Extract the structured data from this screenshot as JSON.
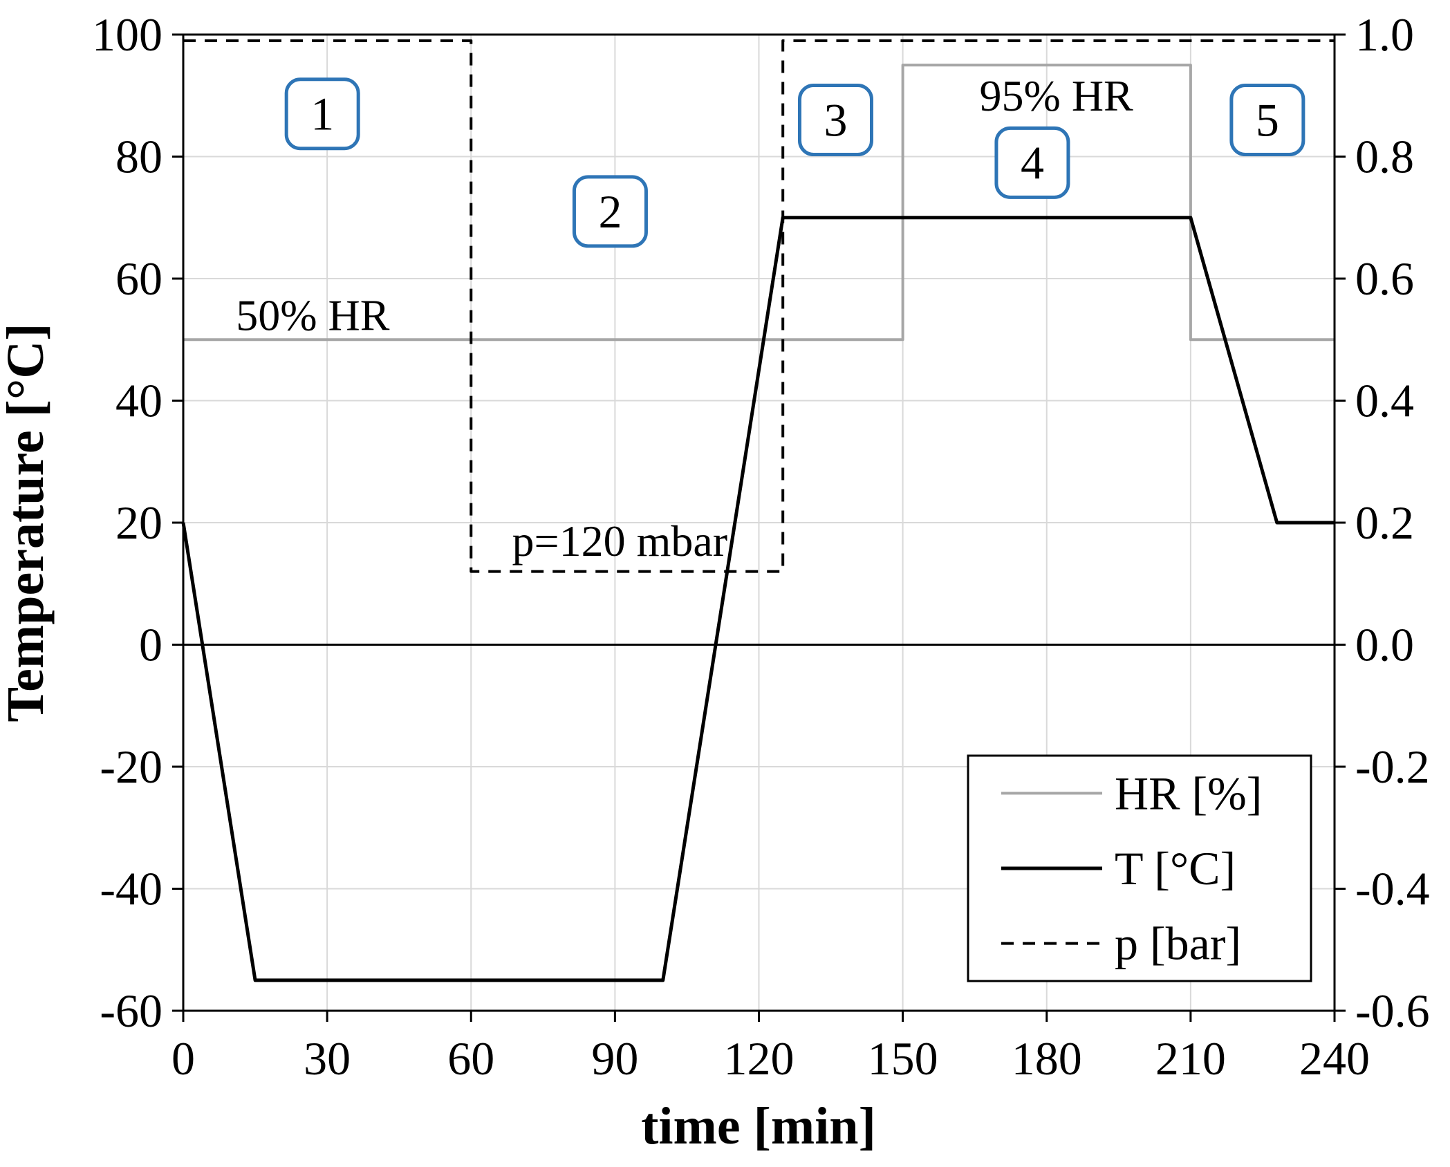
{
  "figure": {
    "background": "#ffffff"
  },
  "chart_data": {
    "type": "line",
    "title": "",
    "xlabel": "time [min]",
    "ylabel": "Temperature [°C]",
    "xlim": [
      0,
      240
    ],
    "ylim_left": [
      -60,
      100
    ],
    "ylim_right": [
      -0.6,
      1.0
    ],
    "x_ticks": [
      0,
      30,
      60,
      90,
      120,
      150,
      180,
      210,
      240
    ],
    "left_ticks": [
      100,
      80,
      60,
      40,
      20,
      0,
      -20,
      -40,
      -60
    ],
    "right_tick_labels": [
      "1.0",
      "0.8",
      "0.6",
      "0.4",
      "0.2",
      "0.0",
      "-0.2",
      "-0.4",
      "-0.6"
    ],
    "grid": true,
    "legend_position": "inside-bottom-right",
    "series": [
      {
        "key": "hr",
        "name": "HR [%]",
        "axis": "left",
        "color": "#a6a6a6",
        "style": "solid",
        "stroke_width": 4,
        "points": [
          [
            0,
            50
          ],
          [
            150,
            50
          ],
          [
            150,
            95
          ],
          [
            210,
            95
          ],
          [
            210,
            50
          ],
          [
            240,
            50
          ]
        ]
      },
      {
        "key": "t",
        "name": "T [°C]",
        "axis": "left",
        "color": "#000000",
        "style": "solid",
        "stroke_width": 5,
        "points": [
          [
            0,
            20
          ],
          [
            15,
            -55
          ],
          [
            100,
            -55
          ],
          [
            125,
            70
          ],
          [
            210,
            70
          ],
          [
            228,
            20
          ],
          [
            240,
            20
          ]
        ]
      },
      {
        "key": "p",
        "name": "p [bar]",
        "axis": "right",
        "color": "#000000",
        "style": "dashed",
        "stroke_width": 4,
        "points": [
          [
            0,
            0.99
          ],
          [
            60,
            0.99
          ],
          [
            60,
            0.12
          ],
          [
            125,
            0.12
          ],
          [
            125,
            0.99
          ],
          [
            240,
            0.99
          ]
        ]
      }
    ],
    "annotations": [
      {
        "key": "hr-50",
        "text": "50% HR",
        "x": 27,
        "y": 54
      },
      {
        "key": "hr-95",
        "text": "95% HR",
        "x": 182,
        "y": 90
      },
      {
        "key": "p-120",
        "text": "p=120 mbar",
        "x": 91,
        "y": 17
      }
    ],
    "phase_labels": [
      {
        "label": "1",
        "x": 29,
        "y": 87
      },
      {
        "label": "2",
        "x": 89,
        "y": 71
      },
      {
        "label": "3",
        "x": 136,
        "y": 86
      },
      {
        "label": "4",
        "x": 177,
        "y": 79
      },
      {
        "label": "5",
        "x": 226,
        "y": 86
      }
    ],
    "colors": {
      "phase_box_border": "#2e75b6",
      "grid": "#d9d9d9",
      "axis": "#000000",
      "hr_line": "#a6a6a6"
    }
  }
}
